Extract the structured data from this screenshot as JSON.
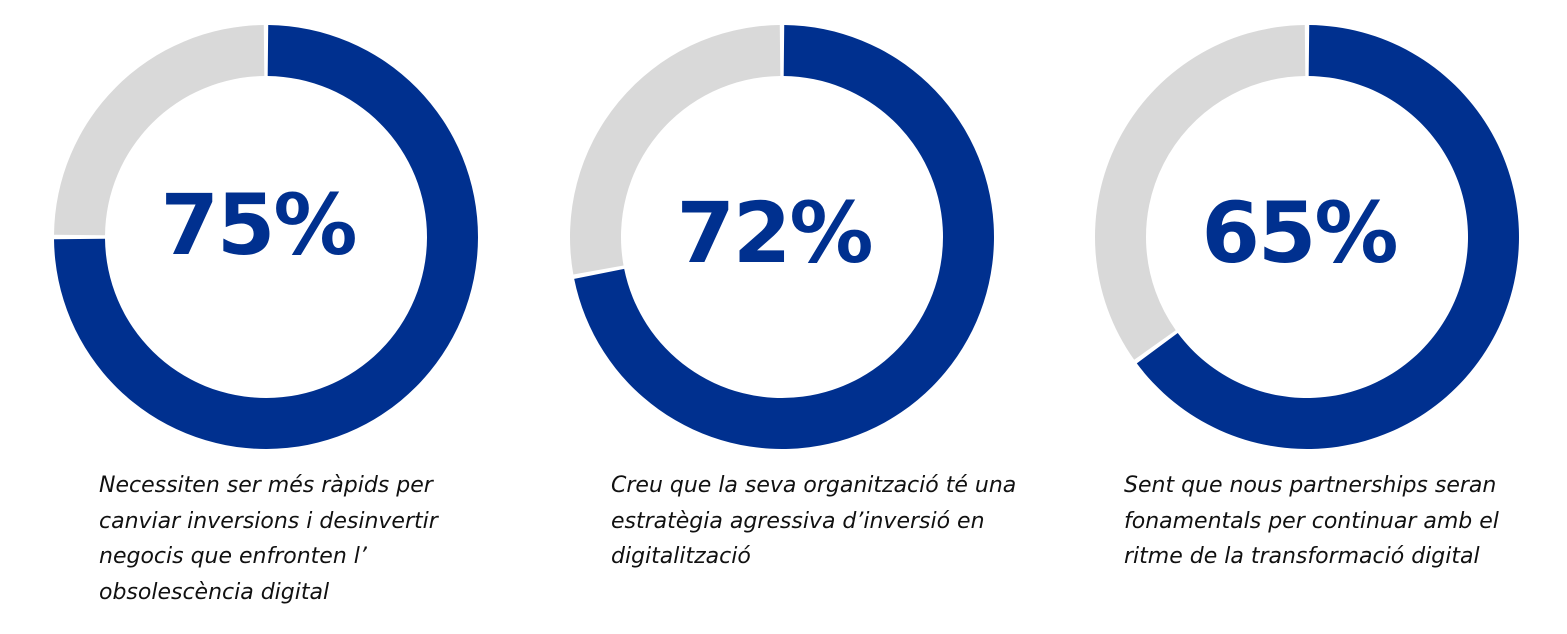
{
  "colors": {
    "value_ring": "#00308F",
    "remainder_ring": "#D9D9D9",
    "percent_text": "#00308F",
    "caption_text": "#111111"
  },
  "chart_data": [
    {
      "type": "pie",
      "style": "donut",
      "values": [
        75,
        25
      ],
      "value_label": "75%",
      "caption": "Necessiten ser més ràpids per\ncanviar inversions i desinvertir\nnegocis que enfronten l’\nobsolescència digital"
    },
    {
      "type": "pie",
      "style": "donut",
      "values": [
        72,
        28
      ],
      "value_label": "72%",
      "caption": "Creu que la seva organització té una\nestratègia agressiva d’inversió en\ndigitalització"
    },
    {
      "type": "pie",
      "style": "donut",
      "values": [
        65,
        35
      ],
      "value_label": "65%",
      "caption": "Sent que nous partnerships seran\nfonamentals per continuar amb el\nritme de la transformació digital"
    }
  ]
}
